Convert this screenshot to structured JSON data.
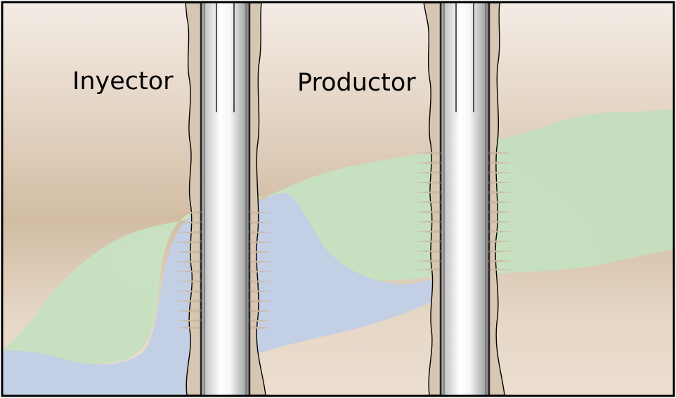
{
  "labels": {
    "injector": "Inyector",
    "producer": "Productor"
  },
  "colors": {
    "frame": "#000000",
    "rock_light": "#f2ebe3",
    "rock_dark": "#d2bda4",
    "oil_zone": "#c6dfc0",
    "water_zone": "#c3cfe4",
    "annulus": "#d5c7b1",
    "casing_outer": "#777777",
    "casing_inner": "#ffffff",
    "perforation": "#cdb89d"
  }
}
